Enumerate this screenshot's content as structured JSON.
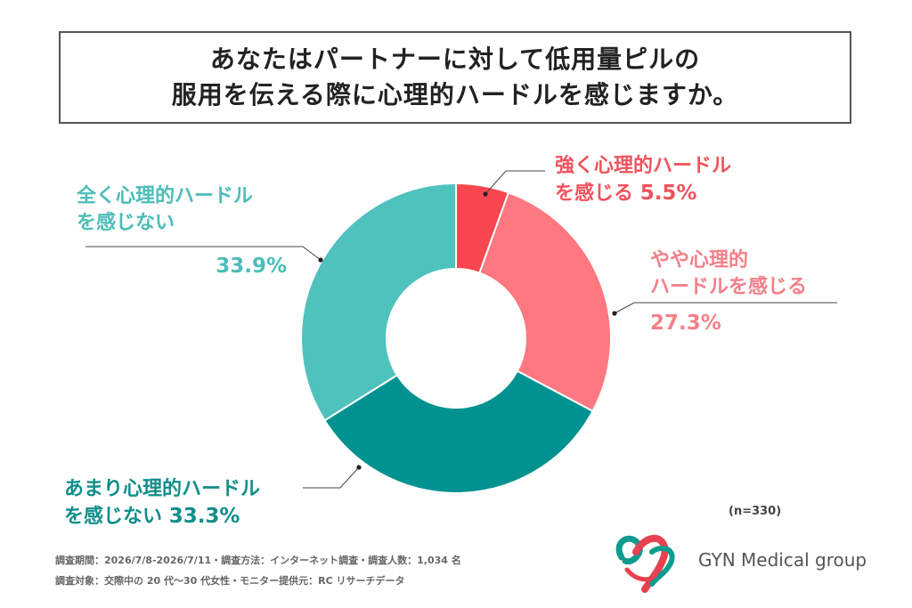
{
  "title": {
    "line1": "あなたはパートナーに対して低用量ピルの",
    "line2": "服用を伝える際に心理的ハードルを感じますか。"
  },
  "chart_data": {
    "type": "pie",
    "donut": true,
    "slices": [
      {
        "label": "強く心理的ハードルを感じる",
        "value": 5.5,
        "color": "#f9474f"
      },
      {
        "label": "やや心理的ハードルを感じる",
        "value": 27.3,
        "color": "#fd7880"
      },
      {
        "label": "あまり心理的ハードルを感じない",
        "value": 33.3,
        "color": "#009291"
      },
      {
        "label": "全く心理的ハードルを感じない",
        "value": 33.9,
        "color": "#4fc2be"
      }
    ],
    "labels": {
      "strong": {
        "line1": "強く心理的ハードル",
        "line2": "を感じる",
        "pct": "5.5%"
      },
      "somewhat": {
        "line1": "やや心理的",
        "line2": "ハードルを感じる",
        "pct": "27.3%"
      },
      "little": {
        "line1": "あまり心理的ハードル",
        "line2": "を感じない",
        "pct": "33.3%"
      },
      "none": {
        "line1": "全く心理的ハードル",
        "line2": "を感じない",
        "pct": "33.9%"
      }
    },
    "n": "(n=330)"
  },
  "notes": {
    "line1": "調査期間：2026/7/8-2026/7/11・調査方法：インターネット調査・調査人数：1,034 名",
    "line2": "調査対象：交際中の 20 代〜30 代女性・モニター提供元：RC リサーチデータ"
  },
  "brand": "GYN Medical group"
}
